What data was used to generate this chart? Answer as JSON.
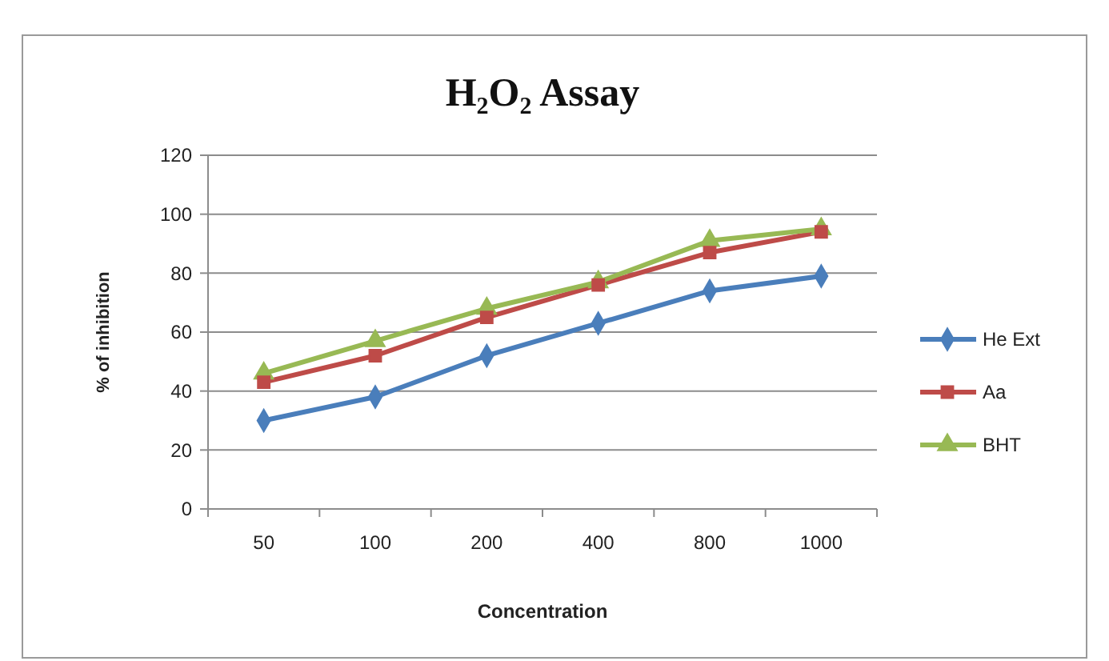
{
  "chart_data": {
    "type": "line",
    "title": "H₂O₂ Assay",
    "xlabel": "Concentration",
    "ylabel": "% of inhibition",
    "categories": [
      "50",
      "100",
      "200",
      "400",
      "800",
      "1000"
    ],
    "series": [
      {
        "name": "He Ext",
        "color": "#4a7ebb",
        "marker": "diamond",
        "values": [
          30,
          38,
          52,
          63,
          74,
          79
        ]
      },
      {
        "name": "Aa",
        "color": "#be4b48",
        "marker": "square",
        "values": [
          43,
          52,
          65,
          76,
          87,
          94
        ]
      },
      {
        "name": "BHT",
        "color": "#98b954",
        "marker": "triangle",
        "values": [
          46,
          57,
          68,
          77,
          91,
          95
        ]
      }
    ],
    "ylim": [
      0,
      120
    ],
    "yticks": [
      0,
      20,
      40,
      60,
      80,
      100,
      120
    ],
    "grid": "y",
    "legend": "right"
  }
}
